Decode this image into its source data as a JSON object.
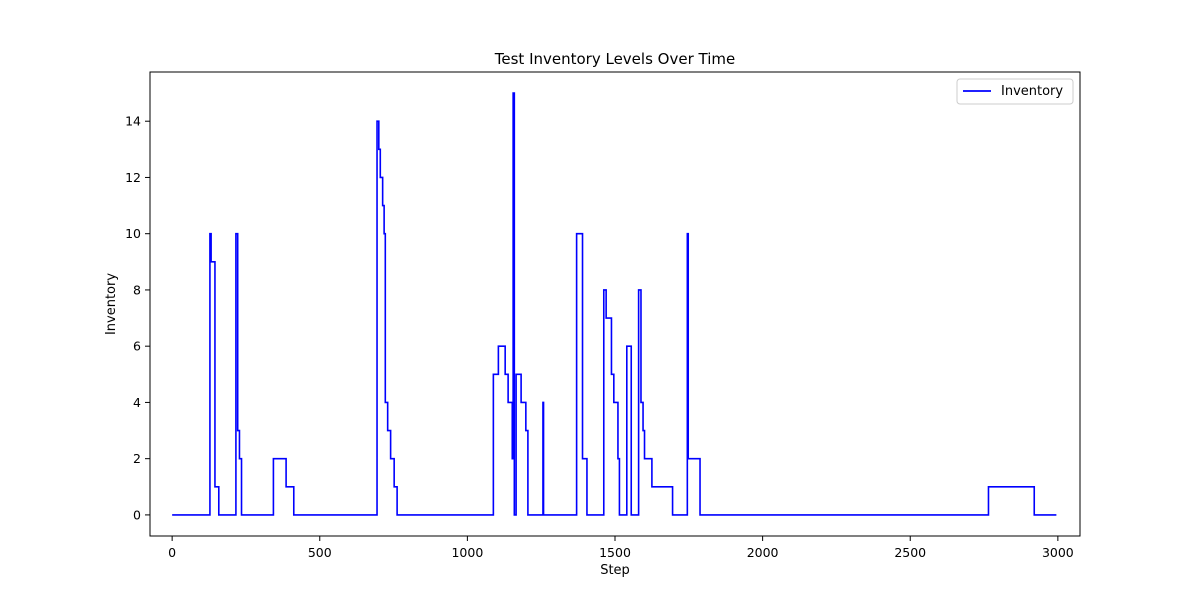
{
  "chart_data": {
    "type": "line",
    "title": "Test Inventory Levels Over Time",
    "xlabel": "Step",
    "ylabel": "Inventory",
    "xlim": [
      -75,
      3075
    ],
    "ylim": [
      -0.75,
      15.75
    ],
    "xticks": [
      0,
      500,
      1000,
      1500,
      2000,
      2500,
      3000
    ],
    "yticks": [
      0,
      2,
      4,
      6,
      8,
      10,
      12,
      14
    ],
    "grid": false,
    "legend_position": "top-right",
    "series": [
      {
        "name": "Inventory",
        "color": "#0000ff",
        "drawstyle": "steps-post",
        "points": [
          [
            0,
            0
          ],
          [
            128,
            10
          ],
          [
            132,
            9
          ],
          [
            145,
            1
          ],
          [
            158,
            0
          ],
          [
            216,
            10
          ],
          [
            222,
            3
          ],
          [
            228,
            2
          ],
          [
            235,
            0
          ],
          [
            343,
            2
          ],
          [
            386,
            1
          ],
          [
            412,
            0
          ],
          [
            694,
            14
          ],
          [
            700,
            13
          ],
          [
            705,
            12
          ],
          [
            713,
            11
          ],
          [
            718,
            10
          ],
          [
            722,
            4
          ],
          [
            730,
            3
          ],
          [
            740,
            2
          ],
          [
            752,
            1
          ],
          [
            762,
            0
          ],
          [
            1088,
            5
          ],
          [
            1105,
            6
          ],
          [
            1128,
            5
          ],
          [
            1138,
            4
          ],
          [
            1152,
            2
          ],
          [
            1155,
            15
          ],
          [
            1159,
            0
          ],
          [
            1165,
            5
          ],
          [
            1182,
            4
          ],
          [
            1198,
            3
          ],
          [
            1205,
            0
          ],
          [
            1256,
            4
          ],
          [
            1258,
            0
          ],
          [
            1370,
            10
          ],
          [
            1390,
            2
          ],
          [
            1405,
            0
          ],
          [
            1462,
            8
          ],
          [
            1470,
            7
          ],
          [
            1488,
            5
          ],
          [
            1496,
            4
          ],
          [
            1510,
            2
          ],
          [
            1515,
            0
          ],
          [
            1540,
            6
          ],
          [
            1555,
            0
          ],
          [
            1580,
            8
          ],
          [
            1588,
            4
          ],
          [
            1595,
            3
          ],
          [
            1600,
            2
          ],
          [
            1625,
            1
          ],
          [
            1695,
            0
          ],
          [
            1745,
            10
          ],
          [
            1748,
            2
          ],
          [
            1788,
            0
          ],
          [
            2765,
            1
          ],
          [
            2920,
            0
          ],
          [
            2995,
            0
          ]
        ]
      }
    ]
  }
}
